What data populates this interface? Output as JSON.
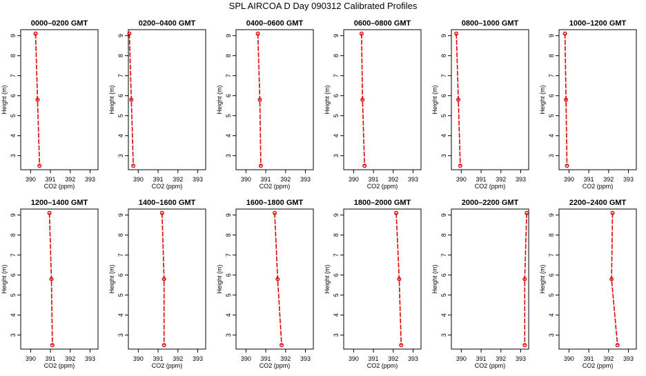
{
  "title": "SPL AIRCOA D  Day 090312  Calibrated Profiles",
  "chart_data": [
    {
      "type": "line",
      "title": "0000–0200 GMT",
      "xlabel": "CO2 (ppm)",
      "ylabel": "Height (m)",
      "xlim": [
        389.5,
        393.4
      ],
      "ylim": [
        2.3,
        9.3
      ],
      "x_ticks": [
        390,
        391,
        392,
        393
      ],
      "y_ticks": [
        3,
        4,
        5,
        6,
        7,
        8,
        9
      ],
      "series": [
        {
          "x": [
            390.25,
            390.35,
            390.45
          ],
          "y": [
            9.1,
            5.8,
            2.5
          ]
        }
      ]
    },
    {
      "type": "line",
      "title": "0200–0400 GMT",
      "xlabel": "CO2 (ppm)",
      "ylabel": "Height (m)",
      "xlim": [
        389.5,
        393.4
      ],
      "ylim": [
        2.3,
        9.3
      ],
      "x_ticks": [
        390,
        391,
        392,
        393
      ],
      "y_ticks": [
        3,
        4,
        5,
        6,
        7,
        8,
        9
      ],
      "series": [
        {
          "x": [
            389.55,
            389.65,
            389.75
          ],
          "y": [
            9.1,
            5.8,
            2.5
          ]
        }
      ]
    },
    {
      "type": "line",
      "title": "0400–0600 GMT",
      "xlabel": "CO2 (ppm)",
      "ylabel": "Height (m)",
      "xlim": [
        389.5,
        393.4
      ],
      "ylim": [
        2.3,
        9.3
      ],
      "x_ticks": [
        390,
        391,
        392,
        393
      ],
      "y_ticks": [
        3,
        4,
        5,
        6,
        7,
        8,
        9
      ],
      "series": [
        {
          "x": [
            390.6,
            390.7,
            390.75
          ],
          "y": [
            9.1,
            5.8,
            2.5
          ]
        }
      ]
    },
    {
      "type": "line",
      "title": "0600–0800 GMT",
      "xlabel": "CO2 (ppm)",
      "ylabel": "Height (m)",
      "xlim": [
        389.5,
        393.4
      ],
      "ylim": [
        2.3,
        9.3
      ],
      "x_ticks": [
        390,
        391,
        392,
        393
      ],
      "y_ticks": [
        3,
        4,
        5,
        6,
        7,
        8,
        9
      ],
      "series": [
        {
          "x": [
            390.4,
            390.45,
            390.55
          ],
          "y": [
            9.1,
            5.8,
            2.5
          ]
        }
      ]
    },
    {
      "type": "line",
      "title": "0800–1000 GMT",
      "xlabel": "CO2 (ppm)",
      "ylabel": "Height (m)",
      "xlim": [
        389.5,
        393.4
      ],
      "ylim": [
        2.3,
        9.3
      ],
      "x_ticks": [
        390,
        391,
        392,
        393
      ],
      "y_ticks": [
        3,
        4,
        5,
        6,
        7,
        8,
        9
      ],
      "series": [
        {
          "x": [
            389.75,
            389.85,
            389.95
          ],
          "y": [
            9.1,
            5.8,
            2.5
          ]
        }
      ]
    },
    {
      "type": "line",
      "title": "1000–1200 GMT",
      "xlabel": "CO2 (ppm)",
      "ylabel": "Height (m)",
      "xlim": [
        389.5,
        393.4
      ],
      "ylim": [
        2.3,
        9.3
      ],
      "x_ticks": [
        390,
        391,
        392,
        393
      ],
      "y_ticks": [
        3,
        4,
        5,
        6,
        7,
        8,
        9
      ],
      "series": [
        {
          "x": [
            389.8,
            389.85,
            389.9
          ],
          "y": [
            9.1,
            5.8,
            2.5
          ]
        }
      ]
    },
    {
      "type": "line",
      "title": "1200–1400 GMT",
      "xlabel": "CO2 (ppm)",
      "ylabel": "Height (m)",
      "xlim": [
        389.5,
        393.4
      ],
      "ylim": [
        2.3,
        9.3
      ],
      "x_ticks": [
        390,
        391,
        392,
        393
      ],
      "y_ticks": [
        3,
        4,
        5,
        6,
        7,
        8,
        9
      ],
      "series": [
        {
          "x": [
            390.95,
            391.05,
            391.1
          ],
          "y": [
            9.1,
            5.8,
            2.5
          ]
        }
      ]
    },
    {
      "type": "line",
      "title": "1400–1600 GMT",
      "xlabel": "CO2 (ppm)",
      "ylabel": "Height (m)",
      "xlim": [
        389.5,
        393.4
      ],
      "ylim": [
        2.3,
        9.3
      ],
      "x_ticks": [
        390,
        391,
        392,
        393
      ],
      "y_ticks": [
        3,
        4,
        5,
        6,
        7,
        8,
        9
      ],
      "series": [
        {
          "x": [
            391.2,
            391.3,
            391.3
          ],
          "y": [
            9.1,
            5.8,
            2.5
          ]
        }
      ]
    },
    {
      "type": "line",
      "title": "1600–1800 GMT",
      "xlabel": "CO2 (ppm)",
      "ylabel": "Height (m)",
      "xlim": [
        389.5,
        393.4
      ],
      "ylim": [
        2.3,
        9.3
      ],
      "x_ticks": [
        390,
        391,
        392,
        393
      ],
      "y_ticks": [
        3,
        4,
        5,
        6,
        7,
        8,
        9
      ],
      "series": [
        {
          "x": [
            391.45,
            391.6,
            391.8
          ],
          "y": [
            9.1,
            5.8,
            2.5
          ]
        }
      ]
    },
    {
      "type": "line",
      "title": "1800–2000 GMT",
      "xlabel": "CO2 (ppm)",
      "ylabel": "Height (m)",
      "xlim": [
        389.5,
        393.4
      ],
      "ylim": [
        2.3,
        9.3
      ],
      "x_ticks": [
        390,
        391,
        392,
        393
      ],
      "y_ticks": [
        3,
        4,
        5,
        6,
        7,
        8,
        9
      ],
      "series": [
        {
          "x": [
            392.15,
            392.3,
            392.4
          ],
          "y": [
            9.1,
            5.8,
            2.5
          ]
        }
      ]
    },
    {
      "type": "line",
      "title": "2000–2200 GMT",
      "xlabel": "CO2 (ppm)",
      "ylabel": "Height (m)",
      "xlim": [
        389.5,
        393.4
      ],
      "ylim": [
        2.3,
        9.3
      ],
      "x_ticks": [
        390,
        391,
        392,
        393
      ],
      "y_ticks": [
        3,
        4,
        5,
        6,
        7,
        8,
        9
      ],
      "series": [
        {
          "x": [
            393.3,
            393.2,
            393.2
          ],
          "y": [
            9.1,
            5.8,
            2.5
          ]
        }
      ]
    },
    {
      "type": "line",
      "title": "2200–2400 GMT",
      "xlabel": "CO2 (ppm)",
      "ylabel": "Height (m)",
      "xlim": [
        389.5,
        393.4
      ],
      "ylim": [
        2.3,
        9.3
      ],
      "x_ticks": [
        390,
        391,
        392,
        393
      ],
      "y_ticks": [
        3,
        4,
        5,
        6,
        7,
        8,
        9
      ],
      "series": [
        {
          "x": [
            392.2,
            392.15,
            392.45
          ],
          "y": [
            9.1,
            5.8,
            2.5
          ]
        }
      ]
    }
  ],
  "colors": {
    "series": "#dd0000",
    "axes": "#000000",
    "background": "#ffffff"
  }
}
